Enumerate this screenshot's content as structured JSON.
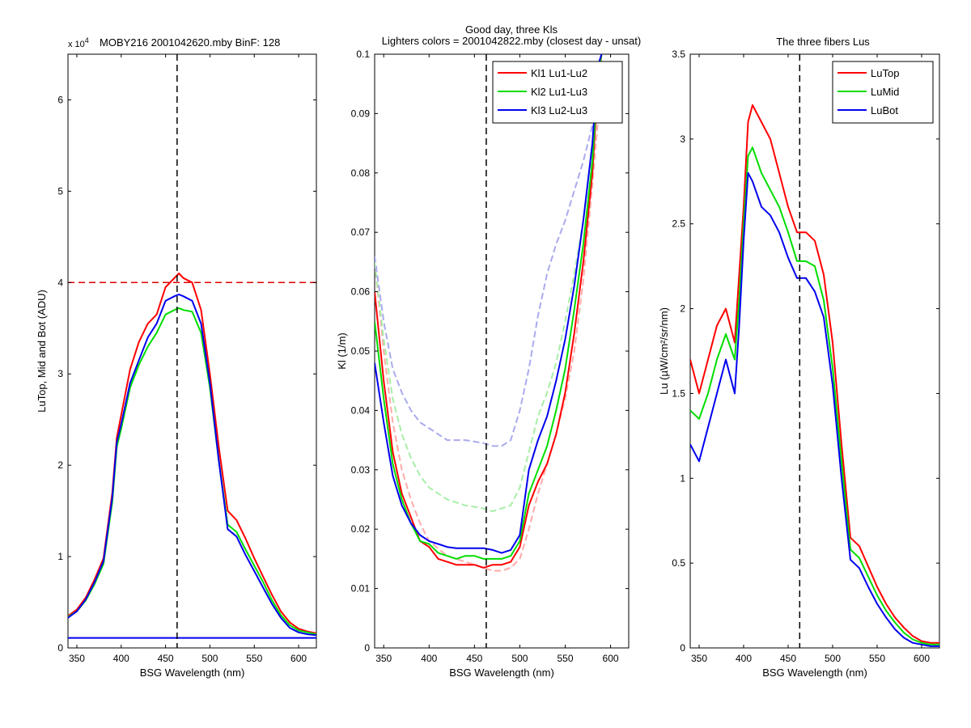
{
  "figure": {
    "suptitle_line1": "Good day, three Kls",
    "suptitle_line2": "Lighters colors = 2001042822.mby (closest day - unsat)"
  },
  "chart_data": [
    {
      "type": "line",
      "title": "MOBY216  2001042620.mby BinF: 128",
      "exponent_label": "x 10",
      "exponent_power": "4",
      "xlabel": "BSG Wavelength (nm)",
      "ylabel": "LuTop, Mid and Bot (ADU)",
      "xlim": [
        340,
        620
      ],
      "ylim": [
        0,
        6.5
      ],
      "y_scale_factor": 10000,
      "xticks": [
        350,
        400,
        450,
        500,
        550,
        600
      ],
      "yticks": [
        0,
        1,
        2,
        3,
        4,
        5,
        6
      ],
      "grid": false,
      "vline_x": 463,
      "hline_y": 4.0,
      "hline_color": "#e00000",
      "series": [
        {
          "color": "#ff0000",
          "x": [
            340,
            350,
            360,
            370,
            380,
            390,
            395,
            400,
            410,
            420,
            430,
            440,
            450,
            460,
            465,
            470,
            480,
            490,
            500,
            510,
            520,
            530,
            540,
            550,
            560,
            570,
            580,
            590,
            600,
            610,
            620
          ],
          "y": [
            0.35,
            0.42,
            0.55,
            0.75,
            0.98,
            1.7,
            2.3,
            2.55,
            3.05,
            3.35,
            3.55,
            3.65,
            3.95,
            4.05,
            4.1,
            4.05,
            4.0,
            3.7,
            3.0,
            2.2,
            1.5,
            1.4,
            1.2,
            0.98,
            0.78,
            0.58,
            0.4,
            0.28,
            0.21,
            0.18,
            0.16
          ]
        },
        {
          "color": "#00dd00",
          "x": [
            340,
            350,
            360,
            370,
            380,
            390,
            395,
            400,
            410,
            420,
            430,
            440,
            450,
            460,
            465,
            470,
            480,
            490,
            500,
            510,
            520,
            530,
            540,
            550,
            560,
            570,
            580,
            590,
            600,
            610,
            620
          ],
          "y": [
            0.34,
            0.4,
            0.52,
            0.7,
            0.92,
            1.6,
            2.2,
            2.4,
            2.85,
            3.1,
            3.3,
            3.45,
            3.65,
            3.7,
            3.72,
            3.7,
            3.68,
            3.45,
            2.85,
            2.05,
            1.35,
            1.27,
            1.08,
            0.9,
            0.72,
            0.52,
            0.36,
            0.25,
            0.19,
            0.17,
            0.15
          ]
        },
        {
          "color": "#0000ee",
          "x": [
            340,
            350,
            360,
            370,
            380,
            390,
            395,
            400,
            410,
            420,
            430,
            440,
            450,
            460,
            465,
            470,
            480,
            490,
            500,
            510,
            520,
            530,
            540,
            550,
            560,
            570,
            580,
            590,
            600,
            610,
            620
          ],
          "y": [
            0.33,
            0.4,
            0.53,
            0.72,
            0.95,
            1.65,
            2.25,
            2.45,
            2.9,
            3.15,
            3.4,
            3.55,
            3.8,
            3.85,
            3.87,
            3.85,
            3.8,
            3.55,
            2.9,
            2.05,
            1.3,
            1.22,
            1.02,
            0.84,
            0.66,
            0.48,
            0.33,
            0.22,
            0.17,
            0.15,
            0.14
          ]
        },
        {
          "color": "#0000ee",
          "x": [
            340,
            620
          ],
          "y": [
            0.11,
            0.11
          ]
        }
      ]
    },
    {
      "type": "line",
      "title": "",
      "xlabel": "BSG Wavelength (nm)",
      "ylabel": "Kl (1/m)",
      "xlim": [
        340,
        620
      ],
      "ylim": [
        0,
        0.1
      ],
      "xticks": [
        350,
        400,
        450,
        500,
        550,
        600
      ],
      "yticks": [
        0,
        0.01,
        0.02,
        0.03,
        0.04,
        0.05,
        0.06,
        0.07,
        0.08,
        0.09,
        0.1
      ],
      "grid": false,
      "vline_x": 463,
      "legend_position": "top-right",
      "series": [
        {
          "name": "Kl1 Lu1-Lu2",
          "color": "#ff0000",
          "x": [
            340,
            350,
            360,
            370,
            380,
            390,
            400,
            410,
            420,
            430,
            440,
            450,
            460,
            470,
            480,
            490,
            500,
            510,
            520,
            530,
            540,
            550,
            560,
            570,
            580,
            586,
            590
          ],
          "y": [
            0.06,
            0.045,
            0.033,
            0.026,
            0.022,
            0.018,
            0.017,
            0.015,
            0.0145,
            0.014,
            0.014,
            0.014,
            0.0135,
            0.014,
            0.014,
            0.0145,
            0.017,
            0.024,
            0.028,
            0.031,
            0.036,
            0.043,
            0.053,
            0.065,
            0.08,
            0.095,
            0.1
          ]
        },
        {
          "name": "Kl2 Lu1-Lu3",
          "color": "#00dd00",
          "x": [
            340,
            350,
            360,
            370,
            380,
            390,
            400,
            410,
            420,
            430,
            440,
            450,
            460,
            470,
            480,
            490,
            500,
            510,
            520,
            530,
            540,
            550,
            560,
            570,
            580,
            586,
            590
          ],
          "y": [
            0.055,
            0.042,
            0.031,
            0.025,
            0.021,
            0.018,
            0.0175,
            0.016,
            0.0155,
            0.015,
            0.0155,
            0.0155,
            0.015,
            0.015,
            0.015,
            0.0155,
            0.018,
            0.026,
            0.03,
            0.034,
            0.04,
            0.047,
            0.057,
            0.068,
            0.082,
            0.096,
            0.1
          ]
        },
        {
          "name": "Kl3 Lu2-Lu3",
          "color": "#0000ee",
          "x": [
            340,
            350,
            360,
            370,
            380,
            390,
            400,
            410,
            420,
            430,
            440,
            450,
            460,
            470,
            480,
            490,
            500,
            510,
            520,
            530,
            540,
            550,
            560,
            570,
            580,
            586,
            590
          ],
          "y": [
            0.048,
            0.038,
            0.029,
            0.024,
            0.021,
            0.019,
            0.018,
            0.0175,
            0.017,
            0.0168,
            0.0168,
            0.0168,
            0.0168,
            0.0165,
            0.016,
            0.0165,
            0.019,
            0.03,
            0.035,
            0.039,
            0.045,
            0.052,
            0.061,
            0.072,
            0.085,
            0.098,
            0.1
          ]
        },
        {
          "color": "#ffaaaa",
          "dashed": true,
          "x": [
            340,
            350,
            360,
            370,
            380,
            390,
            400,
            420,
            440,
            460,
            470,
            480,
            490,
            500,
            510,
            520,
            530,
            540,
            550,
            560,
            570,
            580,
            590
          ],
          "y": [
            0.065,
            0.05,
            0.038,
            0.03,
            0.025,
            0.021,
            0.018,
            0.0155,
            0.0145,
            0.0135,
            0.013,
            0.013,
            0.0135,
            0.015,
            0.02,
            0.026,
            0.031,
            0.036,
            0.042,
            0.05,
            0.062,
            0.078,
            0.096
          ]
        },
        {
          "color": "#a8eea8",
          "dashed": true,
          "x": [
            340,
            350,
            360,
            370,
            380,
            390,
            400,
            420,
            440,
            460,
            470,
            480,
            490,
            500,
            510,
            520,
            530,
            540,
            550,
            560,
            570,
            580,
            590
          ],
          "y": [
            0.065,
            0.052,
            0.042,
            0.036,
            0.032,
            0.029,
            0.027,
            0.025,
            0.024,
            0.0235,
            0.023,
            0.0235,
            0.024,
            0.027,
            0.033,
            0.039,
            0.043,
            0.048,
            0.055,
            0.063,
            0.072,
            0.084,
            0.098
          ]
        },
        {
          "color": "#aaaaee",
          "dashed": true,
          "x": [
            340,
            350,
            360,
            370,
            380,
            390,
            400,
            420,
            440,
            460,
            470,
            480,
            490,
            500,
            510,
            520,
            530,
            540,
            550,
            560,
            570,
            580,
            590
          ],
          "y": [
            0.066,
            0.055,
            0.047,
            0.043,
            0.04,
            0.038,
            0.037,
            0.035,
            0.035,
            0.0345,
            0.034,
            0.034,
            0.035,
            0.04,
            0.047,
            0.056,
            0.063,
            0.068,
            0.072,
            0.077,
            0.082,
            0.088,
            0.097
          ]
        }
      ]
    },
    {
      "type": "line",
      "title": "The three fibers Lus",
      "xlabel": "BSG Wavelength (nm)",
      "ylabel": "Lu (µW/cm²/sr/nm)",
      "xlim": [
        340,
        620
      ],
      "ylim": [
        0,
        3.5
      ],
      "xticks": [
        350,
        400,
        450,
        500,
        550,
        600
      ],
      "yticks": [
        0,
        0.5,
        1,
        1.5,
        2,
        2.5,
        3,
        3.5
      ],
      "grid": false,
      "vline_x": 463,
      "legend_position": "top-right",
      "series": [
        {
          "name": "LuTop",
          "color": "#ff0000",
          "x": [
            340,
            350,
            360,
            370,
            380,
            390,
            395,
            400,
            405,
            410,
            420,
            430,
            440,
            450,
            460,
            470,
            480,
            490,
            500,
            510,
            520,
            530,
            540,
            550,
            560,
            570,
            580,
            590,
            600,
            610,
            620
          ],
          "y": [
            1.7,
            1.5,
            1.7,
            1.9,
            2.0,
            1.8,
            2.2,
            2.6,
            3.1,
            3.2,
            3.1,
            3.0,
            2.8,
            2.6,
            2.45,
            2.45,
            2.4,
            2.2,
            1.8,
            1.2,
            0.65,
            0.6,
            0.48,
            0.36,
            0.26,
            0.18,
            0.12,
            0.07,
            0.04,
            0.03,
            0.03
          ]
        },
        {
          "name": "LuMid",
          "color": "#00dd00",
          "x": [
            340,
            350,
            360,
            370,
            380,
            390,
            395,
            400,
            405,
            410,
            420,
            430,
            440,
            450,
            460,
            470,
            480,
            490,
            500,
            510,
            520,
            530,
            540,
            550,
            560,
            570,
            580,
            590,
            600,
            610,
            620
          ],
          "y": [
            1.4,
            1.35,
            1.5,
            1.7,
            1.85,
            1.7,
            2.05,
            2.5,
            2.9,
            2.95,
            2.8,
            2.7,
            2.6,
            2.45,
            2.28,
            2.28,
            2.25,
            2.05,
            1.65,
            1.1,
            0.58,
            0.53,
            0.42,
            0.31,
            0.22,
            0.15,
            0.09,
            0.05,
            0.03,
            0.02,
            0.02
          ]
        },
        {
          "name": "LuBot",
          "color": "#0000ee",
          "x": [
            340,
            350,
            360,
            370,
            380,
            390,
            395,
            400,
            405,
            410,
            420,
            430,
            440,
            450,
            460,
            470,
            480,
            490,
            500,
            510,
            520,
            530,
            540,
            550,
            560,
            570,
            580,
            590,
            600,
            610,
            620
          ],
          "y": [
            1.2,
            1.1,
            1.3,
            1.5,
            1.7,
            1.5,
            1.9,
            2.4,
            2.8,
            2.75,
            2.6,
            2.55,
            2.45,
            2.3,
            2.18,
            2.18,
            2.1,
            1.95,
            1.55,
            1.0,
            0.52,
            0.47,
            0.36,
            0.26,
            0.18,
            0.11,
            0.06,
            0.03,
            0.02,
            0.01,
            0.01
          ]
        }
      ]
    }
  ]
}
